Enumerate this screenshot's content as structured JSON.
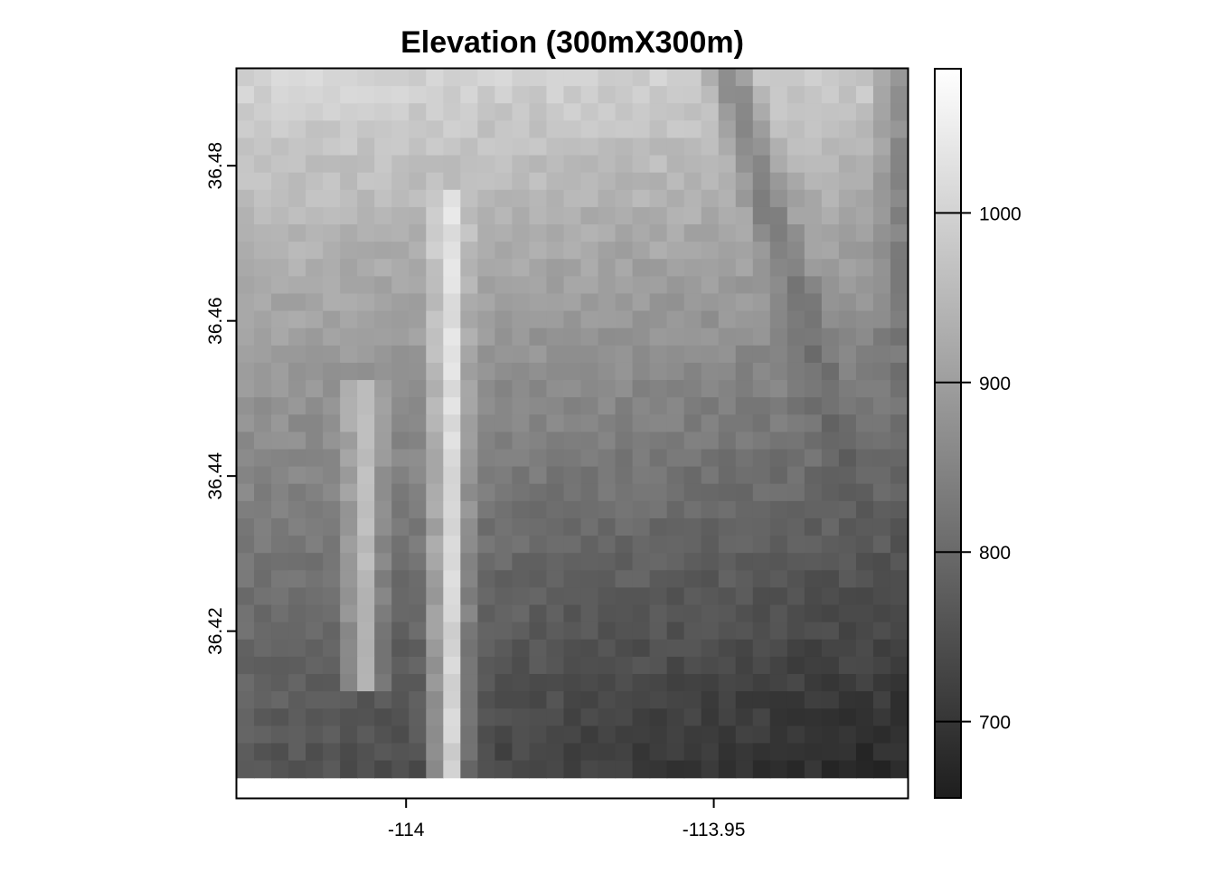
{
  "chart_data": {
    "type": "heatmap",
    "title": "Elevation (300mX300m)",
    "xlabel": "",
    "ylabel": "",
    "colormap": "grayscale",
    "color_low": "#1e1e1e",
    "color_high": "#ffffff",
    "xlim": [
      -114.0275,
      -113.9185
    ],
    "ylim": [
      36.3985,
      36.4925
    ],
    "raster_extent": {
      "x": [
        -114.0275,
        -113.9185
      ],
      "y": [
        36.4011,
        36.4925
      ]
    },
    "grid_size": {
      "cols": 39,
      "rows": 41
    },
    "x_ticks": [
      -114,
      -113.95
    ],
    "x_tick_labels": [
      "-114",
      "-113.95"
    ],
    "y_ticks": [
      36.42,
      36.44,
      36.46,
      36.48
    ],
    "y_tick_labels": [
      "36.42",
      "36.44",
      "36.46",
      "36.48"
    ],
    "colorbar": {
      "range": [
        655,
        1085
      ],
      "ticks": [
        700,
        800,
        900,
        1000
      ],
      "tick_labels": [
        "700",
        "800",
        "900",
        "1000"
      ]
    },
    "value_range": [
      665,
      1075
    ],
    "features": [
      {
        "kind": "ridge",
        "x": -114.007,
        "y": [
          36.412,
          36.452
        ],
        "value": 985
      },
      {
        "kind": "ridge",
        "x": -113.993,
        "y": [
          36.4011,
          36.478
        ],
        "value": 1050
      },
      {
        "kind": "valley",
        "x_from": -113.9475,
        "x_to": -113.925,
        "y_from": 36.492,
        "y_to": 36.432,
        "value": 770
      },
      {
        "kind": "valley",
        "x": -113.92,
        "y": [
          36.45,
          36.492
        ],
        "value": 810
      }
    ]
  }
}
